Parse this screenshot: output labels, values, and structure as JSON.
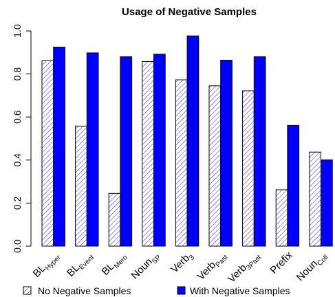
{
  "chart_data": {
    "type": "bar",
    "title": "Usage of Negative Samples",
    "xlabel": "",
    "ylabel": "",
    "ylim": [
      0,
      1.0
    ],
    "yticks": [
      "0.0",
      "0.2",
      "0.4",
      "0.6",
      "0.8",
      "1.0"
    ],
    "categories": [
      {
        "base": "BL",
        "sub": "Hyper",
        "sup": ""
      },
      {
        "base": "BL",
        "sub": "Event",
        "sup": ""
      },
      {
        "base": "BL",
        "sub": "Mero",
        "sup": ""
      },
      {
        "base": "Noun",
        "sub": "SP",
        "sup": ""
      },
      {
        "base": "Verb",
        "sub": "3",
        "sup": ""
      },
      {
        "base": "Verb",
        "sub": "Past",
        "sup": ""
      },
      {
        "base": "Verb",
        "sub": "3Past",
        "sup": ""
      },
      {
        "base": "Prefix",
        "sub": "",
        "sup": ""
      },
      {
        "base": "Noun",
        "sub": "Coll",
        "sup": ""
      }
    ],
    "series": [
      {
        "name": "No Negative Samples",
        "style": "hatched",
        "color": "#1a1aff",
        "values": [
          0.862,
          0.558,
          0.245,
          0.858,
          0.773,
          0.745,
          0.722,
          0.262,
          0.437
        ]
      },
      {
        "name": "With Negative Samples",
        "style": "solid",
        "color": "#0000ff",
        "values": [
          0.925,
          0.898,
          0.88,
          0.892,
          0.977,
          0.864,
          0.88,
          0.561,
          0.401
        ]
      }
    ],
    "grid": false,
    "legend_position": "bottom"
  }
}
